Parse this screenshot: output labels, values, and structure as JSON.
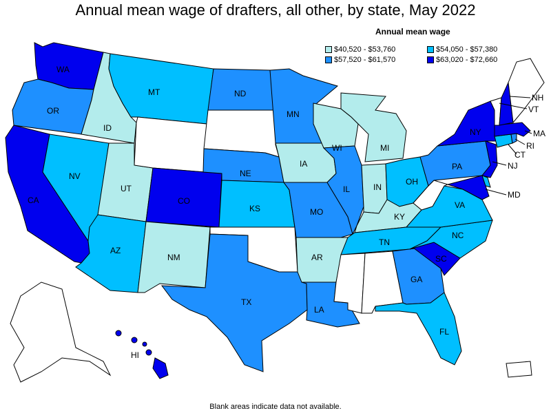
{
  "title": "Annual mean wage of drafters, all other, by state, May 2022",
  "legend": {
    "title": "Annual mean wage",
    "items": [
      {
        "label": "$40,520 - $53,760",
        "color": "#b3ecec"
      },
      {
        "label": "$54,050 - $57,380",
        "color": "#00bfff"
      },
      {
        "label": "$57,520 - $61,570",
        "color": "#1e90ff"
      },
      {
        "label": "$63,020 - $72,660",
        "color": "#0000ee"
      }
    ]
  },
  "footnote": "Blank areas indicate data not available.",
  "colors": {
    "nodata": "#ffffff"
  },
  "states": {
    "WA": {
      "label": "WA",
      "tier": 3
    },
    "OR": {
      "label": "OR",
      "tier": 2
    },
    "CA": {
      "label": "CA",
      "tier": 3
    },
    "ID": {
      "label": "ID",
      "tier": 0
    },
    "NV": {
      "label": "NV",
      "tier": 1
    },
    "UT": {
      "label": "UT",
      "tier": 0
    },
    "AZ": {
      "label": "AZ",
      "tier": 1
    },
    "MT": {
      "label": "MT",
      "tier": 1
    },
    "WY": {
      "label": "",
      "tier": -1
    },
    "CO": {
      "label": "CO",
      "tier": 3
    },
    "NM": {
      "label": "NM",
      "tier": 0
    },
    "ND": {
      "label": "ND",
      "tier": 2
    },
    "SD": {
      "label": "",
      "tier": -1
    },
    "NE": {
      "label": "NE",
      "tier": 2
    },
    "KS": {
      "label": "KS",
      "tier": 1
    },
    "OK": {
      "label": "",
      "tier": -1
    },
    "TX": {
      "label": "TX",
      "tier": 2
    },
    "MN": {
      "label": "MN",
      "tier": 2
    },
    "IA": {
      "label": "IA",
      "tier": 0
    },
    "MO": {
      "label": "MO",
      "tier": 2
    },
    "AR": {
      "label": "AR",
      "tier": 0
    },
    "LA": {
      "label": "LA",
      "tier": 2
    },
    "WI": {
      "label": "WI",
      "tier": 0
    },
    "IL": {
      "label": "IL",
      "tier": 2
    },
    "MI": {
      "label": "MI",
      "tier": 0
    },
    "IN": {
      "label": "IN",
      "tier": 0
    },
    "OH": {
      "label": "OH",
      "tier": 1
    },
    "KY": {
      "label": "KY",
      "tier": 0
    },
    "TN": {
      "label": "TN",
      "tier": 1
    },
    "MS": {
      "label": "",
      "tier": -1
    },
    "AL": {
      "label": "",
      "tier": -1
    },
    "GA": {
      "label": "GA",
      "tier": 2
    },
    "FL": {
      "label": "FL",
      "tier": 1
    },
    "SC": {
      "label": "SC",
      "tier": 3
    },
    "NC": {
      "label": "NC",
      "tier": 1
    },
    "VA": {
      "label": "VA",
      "tier": 1
    },
    "WV": {
      "label": "",
      "tier": -1
    },
    "PA": {
      "label": "PA",
      "tier": 2
    },
    "NY": {
      "label": "NY",
      "tier": 3
    },
    "VT": {
      "label": "VT",
      "tier": -1
    },
    "NH": {
      "label": "NH",
      "tier": 3
    },
    "ME": {
      "label": "",
      "tier": -1
    },
    "MA": {
      "label": "MA",
      "tier": 3
    },
    "CT": {
      "label": "CT",
      "tier": 1
    },
    "RI": {
      "label": "RI",
      "tier": 2
    },
    "NJ": {
      "label": "NJ",
      "tier": 3
    },
    "DE": {
      "label": "",
      "tier": 1
    },
    "MD": {
      "label": "MD",
      "tier": 3
    },
    "AK": {
      "label": "",
      "tier": -1
    },
    "HI": {
      "label": "HI",
      "tier": 3
    },
    "PR": {
      "label": "",
      "tier": -1
    }
  }
}
